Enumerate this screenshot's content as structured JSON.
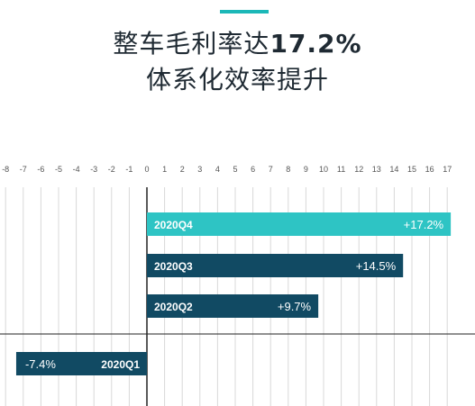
{
  "header": {
    "title_line1_prefix": "整车毛利率达",
    "title_line1_value": "17.2%",
    "title_line2": "体系化效率提升"
  },
  "colors": {
    "accent": "#1bb8b8",
    "bar_highlight": "#2ec4c4",
    "bar_dark": "#114a63",
    "grid": "#d8d8d8",
    "axis": "#222222"
  },
  "chart_data": {
    "type": "bar",
    "orientation": "horizontal",
    "categories": [
      "2020Q4",
      "2020Q3",
      "2020Q2",
      "2020Q1"
    ],
    "values": [
      17.2,
      14.5,
      9.7,
      -7.4
    ],
    "value_labels": [
      "+17.2%",
      "+14.5%",
      "+9.7%",
      "-7.4%"
    ],
    "x_ticks": [
      "-8",
      "-7",
      "-6",
      "-5",
      "-4",
      "-3",
      "-2",
      "-1",
      "0",
      "1",
      "2",
      "3",
      "4",
      "5",
      "6",
      "7",
      "8",
      "9",
      "10",
      "11",
      "12",
      "13",
      "14",
      "15",
      "16",
      "17"
    ],
    "xlim": [
      -8,
      17
    ],
    "grid": true,
    "legend": false
  }
}
